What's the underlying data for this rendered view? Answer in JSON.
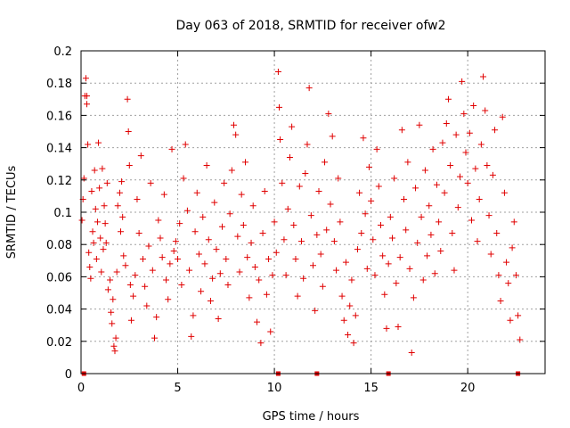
{
  "chart_data": {
    "type": "scatter",
    "title": "Day 063 of 2018, SRMTID for receiver ofw2",
    "xlabel": "GPS time / hours",
    "ylabel": "SRMTID / TECUs",
    "xlim": [
      0,
      24
    ],
    "ylim": [
      0,
      0.2
    ],
    "x_ticks": [
      0,
      5,
      10,
      15,
      20
    ],
    "x_tick_labels": [
      "0",
      "5",
      "10",
      "15",
      "20"
    ],
    "y_ticks": [
      0,
      0.02,
      0.04,
      0.06,
      0.08,
      0.1,
      0.12,
      0.14,
      0.16,
      0.18,
      0.2
    ],
    "y_tick_labels": [
      "0",
      "0.02",
      "0.04",
      "0.06",
      "0.08",
      "0.1",
      "0.12",
      "0.14",
      "0.16",
      "0.18",
      "0.2"
    ],
    "grid": true,
    "marker": "+",
    "color": "#e00000",
    "data_gap_markers_x": [
      0.15,
      10.2,
      12.2,
      15.9,
      22.6
    ],
    "series": [
      {
        "name": "SRMTID",
        "x_range": [
          0.0,
          22.7
        ],
        "points": [
          [
            0.05,
            0.095
          ],
          [
            0.1,
            0.108
          ],
          [
            0.15,
            0.121
          ],
          [
            0.2,
            0.172
          ],
          [
            0.25,
            0.183
          ],
          [
            0.3,
            0.172
          ],
          [
            0.3,
            0.167
          ],
          [
            0.35,
            0.142
          ],
          [
            0.4,
            0.075
          ],
          [
            0.45,
            0.066
          ],
          [
            0.5,
            0.059
          ],
          [
            0.55,
            0.113
          ],
          [
            0.6,
            0.088
          ],
          [
            0.65,
            0.081
          ],
          [
            0.7,
            0.126
          ],
          [
            0.75,
            0.102
          ],
          [
            0.8,
            0.071
          ],
          [
            0.85,
            0.094
          ],
          [
            0.9,
            0.143
          ],
          [
            0.95,
            0.115
          ],
          [
            1.0,
            0.084
          ],
          [
            1.05,
            0.063
          ],
          [
            1.1,
            0.127
          ],
          [
            1.15,
            0.077
          ],
          [
            1.2,
            0.104
          ],
          [
            1.25,
            0.093
          ],
          [
            1.3,
            0.081
          ],
          [
            1.35,
            0.118
          ],
          [
            1.4,
            0.052
          ],
          [
            1.5,
            0.058
          ],
          [
            1.55,
            0.038
          ],
          [
            1.6,
            0.031
          ],
          [
            1.65,
            0.046
          ],
          [
            1.7,
            0.017
          ],
          [
            1.75,
            0.014
          ],
          [
            1.8,
            0.022
          ],
          [
            1.85,
            0.063
          ],
          [
            1.9,
            0.104
          ],
          [
            2.0,
            0.112
          ],
          [
            2.05,
            0.088
          ],
          [
            2.1,
            0.119
          ],
          [
            2.15,
            0.097
          ],
          [
            2.2,
            0.073
          ],
          [
            2.3,
            0.067
          ],
          [
            2.4,
            0.17
          ],
          [
            2.45,
            0.15
          ],
          [
            2.5,
            0.129
          ],
          [
            2.55,
            0.055
          ],
          [
            2.6,
            0.033
          ],
          [
            2.7,
            0.048
          ],
          [
            2.8,
            0.061
          ],
          [
            2.9,
            0.108
          ],
          [
            3.0,
            0.087
          ],
          [
            3.1,
            0.135
          ],
          [
            3.2,
            0.071
          ],
          [
            3.3,
            0.054
          ],
          [
            3.4,
            0.042
          ],
          [
            3.5,
            0.079
          ],
          [
            3.6,
            0.118
          ],
          [
            3.7,
            0.064
          ],
          [
            3.8,
            0.022
          ],
          [
            3.9,
            0.035
          ],
          [
            4.0,
            0.095
          ],
          [
            4.1,
            0.084
          ],
          [
            4.2,
            0.072
          ],
          [
            4.3,
            0.111
          ],
          [
            4.4,
            0.058
          ],
          [
            4.5,
            0.046
          ],
          [
            4.6,
            0.068
          ],
          [
            4.7,
            0.139
          ],
          [
            4.8,
            0.076
          ],
          [
            4.9,
            0.082
          ],
          [
            5.0,
            0.071
          ],
          [
            5.1,
            0.093
          ],
          [
            5.2,
            0.055
          ],
          [
            5.3,
            0.121
          ],
          [
            5.4,
            0.142
          ],
          [
            5.5,
            0.101
          ],
          [
            5.6,
            0.064
          ],
          [
            5.7,
            0.023
          ],
          [
            5.8,
            0.036
          ],
          [
            5.9,
            0.088
          ],
          [
            6.0,
            0.112
          ],
          [
            6.1,
            0.074
          ],
          [
            6.2,
            0.051
          ],
          [
            6.3,
            0.097
          ],
          [
            6.4,
            0.068
          ],
          [
            6.5,
            0.129
          ],
          [
            6.6,
            0.083
          ],
          [
            6.7,
            0.045
          ],
          [
            6.8,
            0.059
          ],
          [
            6.9,
            0.106
          ],
          [
            7.0,
            0.077
          ],
          [
            7.1,
            0.034
          ],
          [
            7.2,
            0.062
          ],
          [
            7.3,
            0.091
          ],
          [
            7.4,
            0.118
          ],
          [
            7.5,
            0.071
          ],
          [
            7.6,
            0.055
          ],
          [
            7.7,
            0.099
          ],
          [
            7.8,
            0.126
          ],
          [
            7.9,
            0.154
          ],
          [
            8.0,
            0.148
          ],
          [
            8.1,
            0.085
          ],
          [
            8.2,
            0.063
          ],
          [
            8.3,
            0.111
          ],
          [
            8.4,
            0.092
          ],
          [
            8.5,
            0.131
          ],
          [
            8.6,
            0.072
          ],
          [
            8.7,
            0.047
          ],
          [
            8.8,
            0.081
          ],
          [
            8.9,
            0.104
          ],
          [
            9.0,
            0.066
          ],
          [
            9.1,
            0.032
          ],
          [
            9.2,
            0.058
          ],
          [
            9.3,
            0.019
          ],
          [
            9.4,
            0.087
          ],
          [
            9.5,
            0.113
          ],
          [
            9.6,
            0.049
          ],
          [
            9.7,
            0.071
          ],
          [
            9.8,
            0.026
          ],
          [
            9.9,
            0.061
          ],
          [
            10.0,
            0.094
          ],
          [
            10.1,
            0.075
          ],
          [
            10.2,
            0.187
          ],
          [
            10.25,
            0.165
          ],
          [
            10.3,
            0.145
          ],
          [
            10.4,
            0.118
          ],
          [
            10.5,
            0.083
          ],
          [
            10.6,
            0.061
          ],
          [
            10.7,
            0.102
          ],
          [
            10.8,
            0.134
          ],
          [
            10.9,
            0.153
          ],
          [
            11.0,
            0.092
          ],
          [
            11.1,
            0.071
          ],
          [
            11.2,
            0.048
          ],
          [
            11.3,
            0.116
          ],
          [
            11.4,
            0.082
          ],
          [
            11.5,
            0.059
          ],
          [
            11.6,
            0.124
          ],
          [
            11.7,
            0.142
          ],
          [
            11.8,
            0.177
          ],
          [
            11.9,
            0.098
          ],
          [
            12.0,
            0.067
          ],
          [
            12.1,
            0.039
          ],
          [
            12.2,
            0.086
          ],
          [
            12.3,
            0.113
          ],
          [
            12.4,
            0.074
          ],
          [
            12.5,
            0.054
          ],
          [
            12.6,
            0.131
          ],
          [
            12.7,
            0.089
          ],
          [
            12.8,
            0.161
          ],
          [
            12.9,
            0.105
          ],
          [
            13.0,
            0.147
          ],
          [
            13.1,
            0.082
          ],
          [
            13.2,
            0.064
          ],
          [
            13.3,
            0.121
          ],
          [
            13.4,
            0.094
          ],
          [
            13.5,
            0.048
          ],
          [
            13.6,
            0.033
          ],
          [
            13.7,
            0.069
          ],
          [
            13.8,
            0.024
          ],
          [
            13.9,
            0.042
          ],
          [
            14.0,
            0.058
          ],
          [
            14.1,
            0.019
          ],
          [
            14.2,
            0.036
          ],
          [
            14.3,
            0.077
          ],
          [
            14.4,
            0.112
          ],
          [
            14.5,
            0.087
          ],
          [
            14.6,
            0.146
          ],
          [
            14.7,
            0.099
          ],
          [
            14.8,
            0.065
          ],
          [
            14.9,
            0.128
          ],
          [
            15.0,
            0.107
          ],
          [
            15.1,
            0.083
          ],
          [
            15.2,
            0.061
          ],
          [
            15.3,
            0.139
          ],
          [
            15.4,
            0.116
          ],
          [
            15.5,
            0.092
          ],
          [
            15.6,
            0.073
          ],
          [
            15.7,
            0.049
          ],
          [
            15.8,
            0.028
          ],
          [
            15.9,
            0.068
          ],
          [
            16.0,
            0.097
          ],
          [
            16.1,
            0.084
          ],
          [
            16.2,
            0.121
          ],
          [
            16.3,
            0.056
          ],
          [
            16.4,
            0.029
          ],
          [
            16.5,
            0.072
          ],
          [
            16.6,
            0.151
          ],
          [
            16.7,
            0.108
          ],
          [
            16.8,
            0.089
          ],
          [
            16.9,
            0.131
          ],
          [
            17.0,
            0.065
          ],
          [
            17.1,
            0.013
          ],
          [
            17.2,
            0.047
          ],
          [
            17.3,
            0.115
          ],
          [
            17.4,
            0.081
          ],
          [
            17.5,
            0.154
          ],
          [
            17.6,
            0.097
          ],
          [
            17.7,
            0.058
          ],
          [
            17.8,
            0.126
          ],
          [
            17.9,
            0.073
          ],
          [
            18.0,
            0.104
          ],
          [
            18.1,
            0.086
          ],
          [
            18.2,
            0.139
          ],
          [
            18.3,
            0.062
          ],
          [
            18.4,
            0.117
          ],
          [
            18.5,
            0.094
          ],
          [
            18.6,
            0.076
          ],
          [
            18.7,
            0.143
          ],
          [
            18.8,
            0.112
          ],
          [
            18.9,
            0.155
          ],
          [
            19.0,
            0.17
          ],
          [
            19.1,
            0.129
          ],
          [
            19.2,
            0.087
          ],
          [
            19.3,
            0.064
          ],
          [
            19.4,
            0.148
          ],
          [
            19.5,
            0.103
          ],
          [
            19.6,
            0.122
          ],
          [
            19.7,
            0.181
          ],
          [
            19.8,
            0.161
          ],
          [
            19.9,
            0.137
          ],
          [
            20.0,
            0.118
          ],
          [
            20.1,
            0.149
          ],
          [
            20.2,
            0.095
          ],
          [
            20.3,
            0.166
          ],
          [
            20.4,
            0.127
          ],
          [
            20.5,
            0.082
          ],
          [
            20.6,
            0.108
          ],
          [
            20.7,
            0.142
          ],
          [
            20.8,
            0.184
          ],
          [
            20.9,
            0.163
          ],
          [
            21.0,
            0.129
          ],
          [
            21.1,
            0.098
          ],
          [
            21.2,
            0.074
          ],
          [
            21.3,
            0.123
          ],
          [
            21.4,
            0.151
          ],
          [
            21.5,
            0.087
          ],
          [
            21.6,
            0.061
          ],
          [
            21.7,
            0.045
          ],
          [
            21.8,
            0.159
          ],
          [
            21.9,
            0.112
          ],
          [
            22.0,
            0.069
          ],
          [
            22.1,
            0.056
          ],
          [
            22.2,
            0.033
          ],
          [
            22.3,
            0.078
          ],
          [
            22.4,
            0.094
          ],
          [
            22.5,
            0.061
          ],
          [
            22.6,
            0.036
          ],
          [
            22.7,
            0.021
          ]
        ]
      }
    ]
  }
}
